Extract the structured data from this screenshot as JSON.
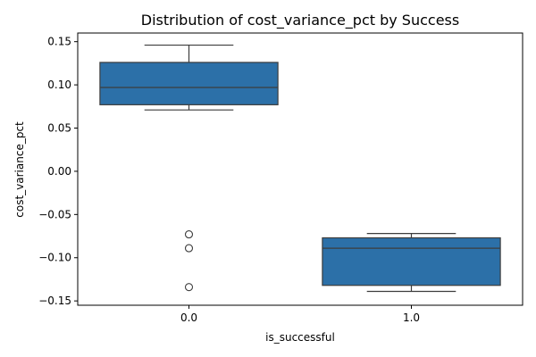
{
  "chart_data": {
    "type": "box",
    "title": "Distribution of cost_variance_pct by Success",
    "xlabel": "is_successful",
    "ylabel": "cost_variance_pct",
    "categories": [
      "0.0",
      "1.0"
    ],
    "ylim": [
      -0.155,
      0.16
    ],
    "yticks": [
      0.15,
      0.1,
      0.05,
      0.0,
      -0.05,
      -0.1,
      -0.15
    ],
    "ytick_labels": [
      "0.15",
      "0.10",
      "0.05",
      "0.00",
      "−0.05",
      "−0.10",
      "−0.15"
    ],
    "grid": false,
    "box_color": "#2c70a8",
    "line_color": "#3d3d3d",
    "boxes": [
      {
        "category": "0.0",
        "whisker_low": 0.071,
        "q1": 0.077,
        "median": 0.097,
        "q3": 0.126,
        "whisker_high": 0.146,
        "outliers": [
          -0.073,
          -0.089,
          -0.134
        ]
      },
      {
        "category": "1.0",
        "whisker_low": -0.139,
        "q1": -0.132,
        "median": -0.089,
        "q3": -0.077,
        "whisker_high": -0.072,
        "outliers": []
      }
    ]
  }
}
